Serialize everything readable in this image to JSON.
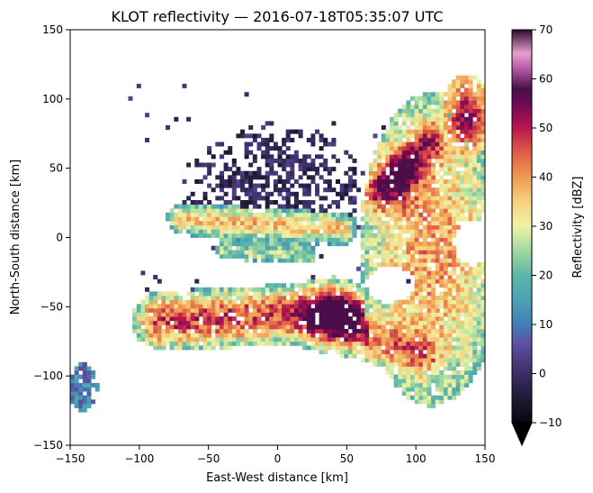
{
  "chart_data": {
    "type": "heatmap",
    "title": "KLOT reflectivity — 2016-07-18T05:35:07 UTC",
    "xlabel": "East-West distance [km]",
    "ylabel": "North-South distance [km]",
    "xlim": [
      -150,
      150
    ],
    "ylim": [
      -150,
      150
    ],
    "x_ticks": [
      -150,
      -100,
      -50,
      0,
      50,
      100,
      150
    ],
    "y_ticks": [
      -150,
      -100,
      -50,
      0,
      50,
      100,
      150
    ],
    "x_tick_labels": [
      "−150",
      "−100",
      "−50",
      "0",
      "50",
      "100",
      "150"
    ],
    "y_tick_labels": [
      "−150",
      "−100",
      "−50",
      "0",
      "50",
      "100",
      "150"
    ],
    "grid": false,
    "colorbar": {
      "label": "Reflectivity [dBZ]",
      "range": [
        -10,
        70
      ],
      "ticks": [
        -10,
        0,
        10,
        20,
        30,
        40,
        50,
        60,
        70
      ],
      "tick_labels": [
        "−10",
        "0",
        "10",
        "20",
        "30",
        "40",
        "50",
        "60",
        "70"
      ],
      "extend": "min",
      "colormap": "spectral-reversed",
      "colors": [
        "#07070f",
        "#3b2f66",
        "#5f4ea0",
        "#3f7fb8",
        "#5cb6a8",
        "#a6d9a0",
        "#eef3a6",
        "#f8d27f",
        "#f19a52",
        "#dd5c47",
        "#b9164f",
        "#6d0b52",
        "#4a0e4a",
        "#b25aa6",
        "#e8a0d0",
        "#2a0b2e"
      ]
    },
    "echo_regions": [
      {
        "name": "northern-clutter",
        "x_range": [
          -60,
          55
        ],
        "y_range": [
          -15,
          75
        ],
        "typical_dbz": [
          -5,
          5
        ]
      },
      {
        "name": "central-band",
        "x_range": [
          -75,
          50
        ],
        "y_range": [
          -20,
          25
        ],
        "typical_dbz": [
          10,
          45
        ]
      },
      {
        "name": "eastern-line",
        "x_range": [
          50,
          150
        ],
        "y_range": [
          -90,
          80
        ],
        "typical_dbz": [
          20,
          55
        ]
      },
      {
        "name": "southern-line",
        "x_range": [
          -90,
          110
        ],
        "y_range": [
          -105,
          -40
        ],
        "typical_dbz": [
          20,
          55
        ]
      },
      {
        "name": "southwest-fragment",
        "x_range": [
          -150,
          -130
        ],
        "y_range": [
          -125,
          -95
        ],
        "typical_dbz": [
          5,
          20
        ]
      }
    ]
  }
}
